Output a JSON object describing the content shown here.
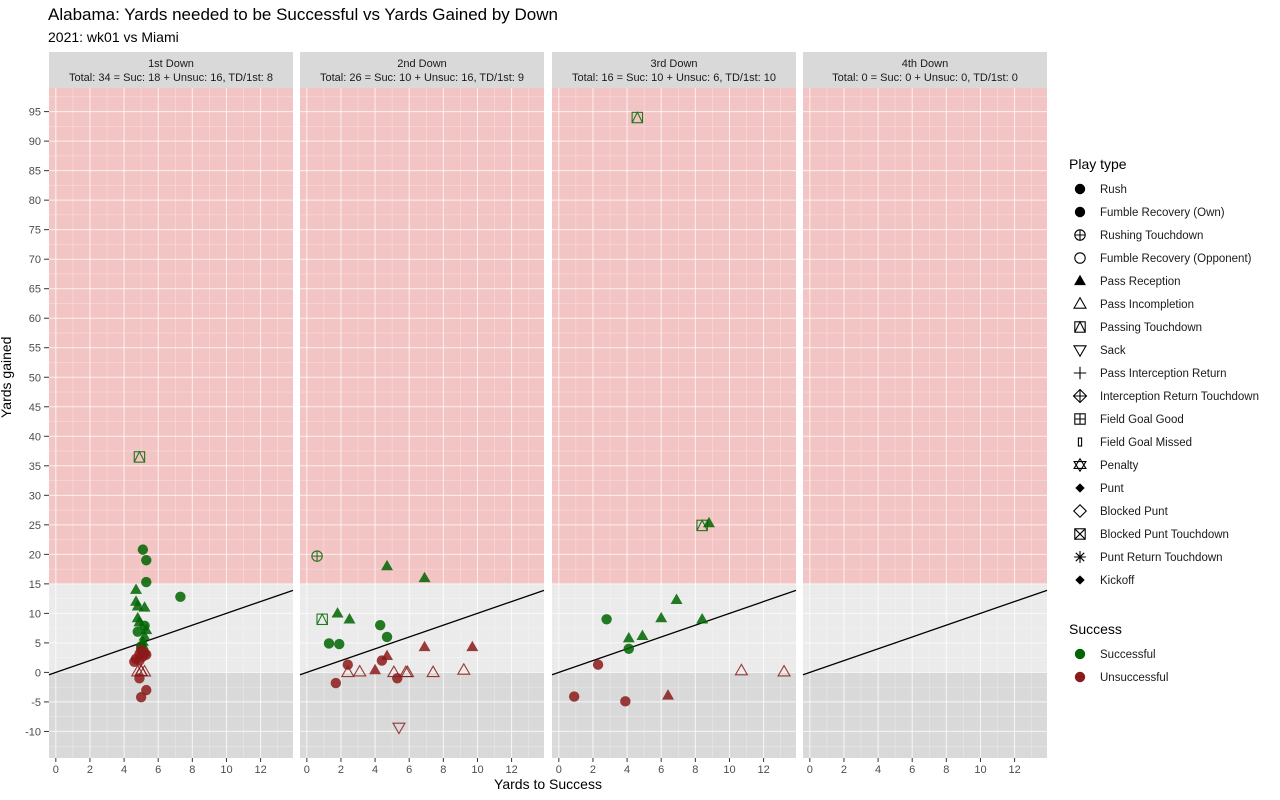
{
  "title": "Alabama: Yards needed to be Successful vs Yards Gained by Down",
  "subtitle": "2021: wk01 vs Miami",
  "chart_data": {
    "type": "scatter",
    "title": "Alabama: Yards needed to be Successful vs Yards Gained by Down",
    "subtitle": "2021: wk01 vs Miami",
    "xlabel": "Yards to Success",
    "ylabel": "Yards gained",
    "xlim": [
      -0.4,
      13.9
    ],
    "ylim": [
      -14.5,
      99
    ],
    "x_ticks": [
      0,
      2,
      4,
      6,
      8,
      10,
      12
    ],
    "y_ticks": [
      -10,
      -5,
      0,
      5,
      10,
      15,
      20,
      25,
      30,
      35,
      40,
      45,
      50,
      55,
      60,
      65,
      70,
      75,
      80,
      85,
      90,
      95
    ],
    "grid": true,
    "shaded_regions": [
      {
        "y_from": 15,
        "color": "#f3c4c4"
      },
      {
        "y_to": 0,
        "color": "#d9d9d9"
      }
    ],
    "reference_line": {
      "slope": 1,
      "intercept": 0
    },
    "colors": {
      "Successful": "#006400",
      "Unsuccessful": "#8b1a1a"
    },
    "legend_position": "right",
    "legend": {
      "play_type_title": "Play type",
      "success_title": "Success",
      "play_types": [
        {
          "label": "Rush",
          "shape": "circle"
        },
        {
          "label": "Fumble Recovery (Own)",
          "shape": "circle"
        },
        {
          "label": "Rushing Touchdown",
          "shape": "circle-plus"
        },
        {
          "label": "Fumble Recovery (Opponent)",
          "shape": "circle-open"
        },
        {
          "label": "Pass Reception",
          "shape": "triangle"
        },
        {
          "label": "Pass Incompletion",
          "shape": "triangle-open"
        },
        {
          "label": "Passing Touchdown",
          "shape": "square-triangle"
        },
        {
          "label": "Sack",
          "shape": "triangle-down-open"
        },
        {
          "label": "Pass Interception Return",
          "shape": "plus"
        },
        {
          "label": "Interception Return Touchdown",
          "shape": "diamond-plus"
        },
        {
          "label": "Field Goal Good",
          "shape": "square-plus"
        },
        {
          "label": "Field Goal Missed",
          "shape": "bar"
        },
        {
          "label": "Penalty",
          "shape": "star-of-david"
        },
        {
          "label": "Punt",
          "shape": "diamond-small"
        },
        {
          "label": "Blocked Punt",
          "shape": "diamond-open"
        },
        {
          "label": "Blocked Punt Touchdown",
          "shape": "square-x"
        },
        {
          "label": "Punt Return Touchdown",
          "shape": "asterisk"
        },
        {
          "label": "Kickoff",
          "shape": "diamond-small"
        }
      ],
      "success": [
        {
          "label": "Successful",
          "color": "#006400"
        },
        {
          "label": "Unsuccessful",
          "color": "#8b1a1a"
        }
      ]
    },
    "facets": [
      {
        "name": "1st Down",
        "summary": "Total: 34 = Suc: 18 + Unsuc: 16, TD/1st: 8",
        "points": [
          {
            "x": 4.9,
            "y": 36.5,
            "type": "Passing Touchdown",
            "success": "Successful"
          },
          {
            "x": 5.1,
            "y": 20.8,
            "type": "Rush",
            "success": "Successful"
          },
          {
            "x": 5.3,
            "y": 19,
            "type": "Rush",
            "success": "Successful"
          },
          {
            "x": 5.3,
            "y": 15.3,
            "type": "Rush",
            "success": "Successful"
          },
          {
            "x": 4.7,
            "y": 14,
            "type": "Pass Reception",
            "success": "Successful"
          },
          {
            "x": 7.3,
            "y": 12.8,
            "type": "Rush",
            "success": "Successful"
          },
          {
            "x": 4.7,
            "y": 12,
            "type": "Pass Reception",
            "success": "Successful"
          },
          {
            "x": 4.8,
            "y": 11.2,
            "type": "Pass Reception",
            "success": "Successful"
          },
          {
            "x": 5.2,
            "y": 11,
            "type": "Pass Reception",
            "success": "Successful"
          },
          {
            "x": 4.8,
            "y": 9.2,
            "type": "Pass Reception",
            "success": "Successful"
          },
          {
            "x": 4.9,
            "y": 8.5,
            "type": "Pass Reception",
            "success": "Successful"
          },
          {
            "x": 5.2,
            "y": 7.9,
            "type": "Rush",
            "success": "Successful"
          },
          {
            "x": 5.3,
            "y": 7.2,
            "type": "Pass Reception",
            "success": "Successful"
          },
          {
            "x": 4.8,
            "y": 6.9,
            "type": "Rush",
            "success": "Successful"
          },
          {
            "x": 5.2,
            "y": 6.1,
            "type": "Pass Reception",
            "success": "Successful"
          },
          {
            "x": 5.1,
            "y": 5.2,
            "type": "Pass Reception",
            "success": "Successful"
          },
          {
            "x": 5.0,
            "y": 4.4,
            "type": "Rush",
            "success": "Successful"
          },
          {
            "x": 5.1,
            "y": 4.6,
            "type": "Pass Reception",
            "success": "Successful"
          },
          {
            "x": 5.0,
            "y": 3.8,
            "type": "Rush",
            "success": "Unsuccessful"
          },
          {
            "x": 5.2,
            "y": 3.5,
            "type": "Pass Reception",
            "success": "Unsuccessful"
          },
          {
            "x": 4.9,
            "y": 3.1,
            "type": "Rush",
            "success": "Unsuccessful"
          },
          {
            "x": 5.3,
            "y": 3.0,
            "type": "Rush",
            "success": "Unsuccessful"
          },
          {
            "x": 5.1,
            "y": 2.7,
            "type": "Rush",
            "success": "Unsuccessful"
          },
          {
            "x": 4.7,
            "y": 2.3,
            "type": "Rush",
            "success": "Unsuccessful"
          },
          {
            "x": 4.9,
            "y": 2.0,
            "type": "Rush",
            "success": "Unsuccessful"
          },
          {
            "x": 4.6,
            "y": 1.8,
            "type": "Rush",
            "success": "Unsuccessful"
          },
          {
            "x": 5.2,
            "y": 3.3,
            "type": "Rush",
            "success": "Unsuccessful"
          },
          {
            "x": 5.0,
            "y": 0.1,
            "type": "Pass Incompletion",
            "success": "Unsuccessful"
          },
          {
            "x": 5.2,
            "y": 0.1,
            "type": "Pass Incompletion",
            "success": "Unsuccessful"
          },
          {
            "x": 4.8,
            "y": 0.1,
            "type": "Pass Incompletion",
            "success": "Unsuccessful"
          },
          {
            "x": 4.9,
            "y": -1.0,
            "type": "Rush",
            "success": "Unsuccessful"
          },
          {
            "x": 5.3,
            "y": -3.0,
            "type": "Rush",
            "success": "Unsuccessful"
          },
          {
            "x": 5.0,
            "y": -4.2,
            "type": "Rush",
            "success": "Unsuccessful"
          },
          {
            "x": 5.0,
            "y": 0.2,
            "type": "Pass Incompletion",
            "success": "Unsuccessful"
          }
        ]
      },
      {
        "name": "2nd Down",
        "summary": "Total: 26 = Suc: 10 + Unsuc: 16, TD/1st: 9",
        "points": [
          {
            "x": 0.6,
            "y": 19.7,
            "type": "Rushing Touchdown",
            "success": "Successful"
          },
          {
            "x": 4.7,
            "y": 18.0,
            "type": "Pass Reception",
            "success": "Successful"
          },
          {
            "x": 6.9,
            "y": 16.0,
            "type": "Pass Reception",
            "success": "Successful"
          },
          {
            "x": 0.9,
            "y": 9.0,
            "type": "Passing Touchdown",
            "success": "Successful"
          },
          {
            "x": 1.8,
            "y": 10.0,
            "type": "Pass Reception",
            "success": "Successful"
          },
          {
            "x": 2.5,
            "y": 9.0,
            "type": "Pass Reception",
            "success": "Successful"
          },
          {
            "x": 4.3,
            "y": 8.0,
            "type": "Rush",
            "success": "Successful"
          },
          {
            "x": 4.7,
            "y": 6.0,
            "type": "Rush",
            "success": "Successful"
          },
          {
            "x": 1.3,
            "y": 4.9,
            "type": "Rush",
            "success": "Successful"
          },
          {
            "x": 1.9,
            "y": 4.8,
            "type": "Rush",
            "success": "Successful"
          },
          {
            "x": 6.9,
            "y": 4.3,
            "type": "Pass Reception",
            "success": "Unsuccessful"
          },
          {
            "x": 9.7,
            "y": 4.3,
            "type": "Pass Reception",
            "success": "Unsuccessful"
          },
          {
            "x": 4.7,
            "y": 2.8,
            "type": "Pass Reception",
            "success": "Unsuccessful"
          },
          {
            "x": 4.4,
            "y": 2.0,
            "type": "Rush",
            "success": "Unsuccessful"
          },
          {
            "x": 2.4,
            "y": 1.3,
            "type": "Rush",
            "success": "Unsuccessful"
          },
          {
            "x": 4.0,
            "y": 0.4,
            "type": "Pass Reception",
            "success": "Unsuccessful"
          },
          {
            "x": 2.4,
            "y": 0.0,
            "type": "Pass Incompletion",
            "success": "Unsuccessful"
          },
          {
            "x": 3.1,
            "y": 0.1,
            "type": "Pass Incompletion",
            "success": "Unsuccessful"
          },
          {
            "x": 5.1,
            "y": 0.0,
            "type": "Pass Incompletion",
            "success": "Unsuccessful"
          },
          {
            "x": 5.8,
            "y": 0.0,
            "type": "Pass Incompletion",
            "success": "Unsuccessful"
          },
          {
            "x": 5.9,
            "y": 0.0,
            "type": "Pass Incompletion",
            "success": "Unsuccessful"
          },
          {
            "x": 7.4,
            "y": 0.0,
            "type": "Pass Incompletion",
            "success": "Unsuccessful"
          },
          {
            "x": 9.2,
            "y": 0.4,
            "type": "Pass Incompletion",
            "success": "Unsuccessful"
          },
          {
            "x": 5.3,
            "y": -1.0,
            "type": "Rush",
            "success": "Unsuccessful"
          },
          {
            "x": 1.7,
            "y": -1.8,
            "type": "Rush",
            "success": "Unsuccessful"
          },
          {
            "x": 5.4,
            "y": -9.3,
            "type": "Sack",
            "success": "Unsuccessful"
          }
        ]
      },
      {
        "name": "3rd Down",
        "summary": "Total: 16 = Suc: 10 + Unsuc: 6, TD/1st: 10",
        "points": [
          {
            "x": 4.6,
            "y": 94.0,
            "type": "Passing Touchdown",
            "success": "Successful"
          },
          {
            "x": 8.8,
            "y": 25.3,
            "type": "Pass Reception",
            "success": "Successful"
          },
          {
            "x": 8.4,
            "y": 24.9,
            "type": "Passing Touchdown",
            "success": "Successful"
          },
          {
            "x": 6.9,
            "y": 12.3,
            "type": "Pass Reception",
            "success": "Successful"
          },
          {
            "x": 6.0,
            "y": 9.2,
            "type": "Pass Reception",
            "success": "Successful"
          },
          {
            "x": 8.4,
            "y": 9.0,
            "type": "Pass Reception",
            "success": "Successful"
          },
          {
            "x": 2.8,
            "y": 9.0,
            "type": "Rush",
            "success": "Successful"
          },
          {
            "x": 4.1,
            "y": 5.8,
            "type": "Pass Reception",
            "success": "Successful"
          },
          {
            "x": 4.9,
            "y": 6.2,
            "type": "Pass Reception",
            "success": "Successful"
          },
          {
            "x": 4.1,
            "y": 4.0,
            "type": "Rush",
            "success": "Successful"
          },
          {
            "x": 2.3,
            "y": 1.3,
            "type": "Rush",
            "success": "Unsuccessful"
          },
          {
            "x": 10.7,
            "y": 0.3,
            "type": "Pass Incompletion",
            "success": "Unsuccessful"
          },
          {
            "x": 13.2,
            "y": 0.1,
            "type": "Pass Incompletion",
            "success": "Unsuccessful"
          },
          {
            "x": 0.9,
            "y": -4.1,
            "type": "Rush",
            "success": "Unsuccessful"
          },
          {
            "x": 3.9,
            "y": -4.9,
            "type": "Rush",
            "success": "Unsuccessful"
          },
          {
            "x": 6.4,
            "y": -3.9,
            "type": "Pass Reception",
            "success": "Unsuccessful"
          }
        ]
      },
      {
        "name": "4th Down",
        "summary": "Total: 0 = Suc: 0 + Unsuc: 0, TD/1st: 0",
        "points": []
      }
    ]
  }
}
